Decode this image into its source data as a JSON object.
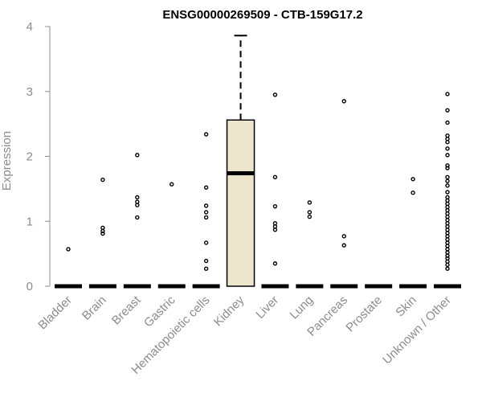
{
  "chart_data": {
    "type": "box",
    "title": "ENSG00000269509 - CTB-159G17.2",
    "xlabel": "",
    "ylabel": "Expression",
    "ylim": [
      0,
      4
    ],
    "yticks": [
      0,
      1,
      2,
      3,
      4
    ],
    "categories": [
      "Bladder",
      "Brain",
      "Breast",
      "Gastric",
      "Hematopoietic cells",
      "Kidney",
      "Liver",
      "Lung",
      "Pancreas",
      "Prostate",
      "Skin",
      "Unknown / Other"
    ],
    "box_fill": "#ede6cc",
    "boxes": [
      {
        "category": "Bladder",
        "q1": 0,
        "median": 0,
        "q3": 0,
        "whisker_high": 0,
        "outliers": [
          0.57
        ]
      },
      {
        "category": "Brain",
        "q1": 0,
        "median": 0,
        "q3": 0,
        "whisker_high": 0,
        "outliers": [
          0.81,
          0.85,
          0.9,
          1.64
        ]
      },
      {
        "category": "Breast",
        "q1": 0,
        "median": 0,
        "q3": 0,
        "whisker_high": 0,
        "outliers": [
          1.06,
          1.25,
          1.3,
          1.37,
          2.02
        ]
      },
      {
        "category": "Gastric",
        "q1": 0,
        "median": 0,
        "q3": 0,
        "whisker_high": 0,
        "outliers": [
          1.57
        ]
      },
      {
        "category": "Hematopoietic cells",
        "q1": 0,
        "median": 0,
        "q3": 0,
        "whisker_high": 0,
        "outliers": [
          0.27,
          0.39,
          0.67,
          1.06,
          1.14,
          1.24,
          1.52,
          2.34
        ]
      },
      {
        "category": "Kidney",
        "q1": 0,
        "median": 1.74,
        "q3": 2.56,
        "whisker_high": 3.86,
        "outliers": []
      },
      {
        "category": "Liver",
        "q1": 0,
        "median": 0,
        "q3": 0,
        "whisker_high": 0,
        "outliers": [
          0.35,
          0.87,
          0.92,
          0.97,
          1.23,
          1.68,
          2.95
        ]
      },
      {
        "category": "Lung",
        "q1": 0,
        "median": 0,
        "q3": 0,
        "whisker_high": 0,
        "outliers": [
          1.07,
          1.14,
          1.29
        ]
      },
      {
        "category": "Pancreas",
        "q1": 0,
        "median": 0,
        "q3": 0,
        "whisker_high": 0,
        "outliers": [
          0.63,
          0.77,
          2.85
        ]
      },
      {
        "category": "Prostate",
        "q1": 0,
        "median": 0,
        "q3": 0,
        "whisker_high": 0,
        "outliers": []
      },
      {
        "category": "Skin",
        "q1": 0,
        "median": 0,
        "q3": 0,
        "whisker_high": 0,
        "outliers": [
          1.44,
          1.65
        ]
      },
      {
        "category": "Unknown / Other",
        "q1": 0,
        "median": 0,
        "q3": 0,
        "whisker_high": 0,
        "outliers": [
          0.27,
          0.33,
          0.38,
          0.43,
          0.47,
          0.52,
          0.57,
          0.62,
          0.67,
          0.72,
          0.77,
          0.82,
          0.87,
          0.92,
          0.97,
          1.02,
          1.07,
          1.12,
          1.17,
          1.22,
          1.27,
          1.32,
          1.37,
          1.45,
          1.55,
          1.62,
          1.68,
          1.82,
          1.86,
          2.02,
          2.12,
          2.22,
          2.27,
          2.32,
          2.52,
          2.71,
          2.96
        ]
      }
    ]
  }
}
